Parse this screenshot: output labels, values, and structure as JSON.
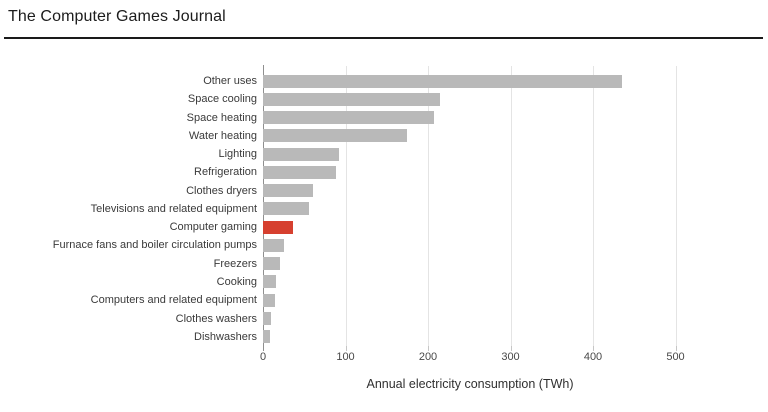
{
  "header": {
    "title": "The Computer Games Journal"
  },
  "chart_data": {
    "type": "bar",
    "orientation": "horizontal",
    "title": "",
    "xlabel": "Annual electricity consumption (TWh)",
    "ylabel": "",
    "xlim": [
      0,
      530
    ],
    "xticks": [
      0,
      100,
      200,
      300,
      400,
      500
    ],
    "grid": true,
    "legend": "none",
    "categories": [
      "Other uses",
      "Space cooling",
      "Space heating",
      "Water heating",
      "Lighting",
      "Refrigeration",
      "Clothes dryers",
      "Televisions and related equipment",
      "Computer gaming",
      "Furnace fans and boiler circulation pumps",
      "Freezers",
      "Cooking",
      "Computers and related equipment",
      "Clothes washers",
      "Dishwashers"
    ],
    "values": [
      435,
      215,
      207,
      175,
      92,
      88,
      60,
      56,
      36,
      25,
      20,
      16,
      15,
      10,
      8
    ],
    "highlight_category": "Computer gaming",
    "highlight_index": 8,
    "colors": {
      "bar": "#b9b9b9",
      "highlight": "#d6402f",
      "gridline": "#e4e4e4",
      "axis_line": "#8f8f8f"
    }
  }
}
